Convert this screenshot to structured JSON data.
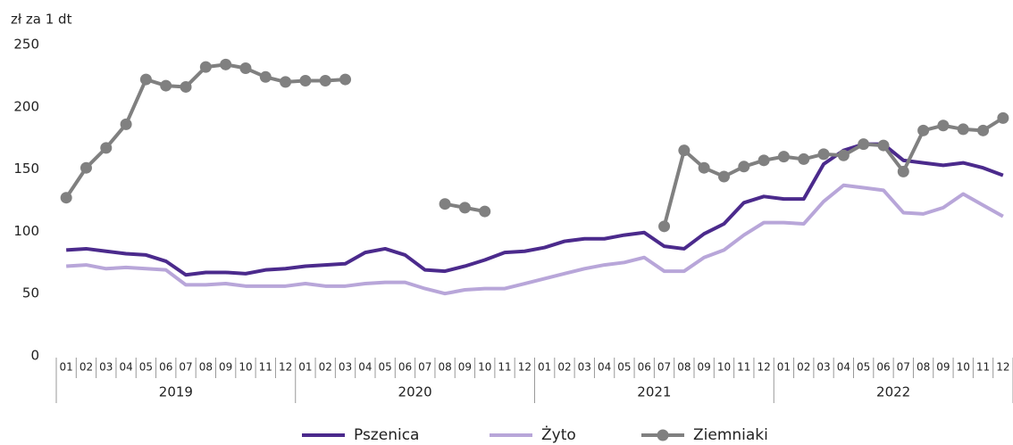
{
  "chart_data": {
    "type": "line",
    "y_label": "zł za 1 dt",
    "categories": [
      "01",
      "02",
      "03",
      "04",
      "05",
      "06",
      "07",
      "08",
      "09",
      "10",
      "11",
      "12",
      "01",
      "02",
      "03",
      "04",
      "05",
      "06",
      "07",
      "08",
      "09",
      "10",
      "11",
      "12",
      "01",
      "02",
      "03",
      "04",
      "05",
      "06",
      "07",
      "08",
      "09",
      "10",
      "11",
      "12",
      "01",
      "02",
      "03",
      "04",
      "05",
      "06",
      "07",
      "08",
      "09",
      "10",
      "11",
      "12"
    ],
    "years": [
      "2019",
      "2020",
      "2021",
      "2022"
    ],
    "ylim": [
      0,
      250
    ],
    "yticks": [
      0,
      50,
      100,
      150,
      200,
      250
    ],
    "legend": "bottom",
    "series": [
      {
        "name": "Pszenica",
        "color": "#4b2a8c",
        "marker": false,
        "values": [
          85,
          86,
          84,
          82,
          81,
          76,
          65,
          67,
          67,
          66,
          69,
          70,
          72,
          73,
          74,
          83,
          86,
          81,
          69,
          68,
          72,
          77,
          83,
          84,
          87,
          92,
          94,
          94,
          97,
          99,
          88,
          86,
          98,
          106,
          123,
          128,
          126,
          126,
          154,
          165,
          170,
          170,
          157,
          155,
          153,
          155,
          151,
          145
        ]
      },
      {
        "name": "Żyto",
        "color": "#b8a6d9",
        "marker": false,
        "values": [
          72,
          73,
          70,
          71,
          70,
          69,
          57,
          57,
          58,
          56,
          56,
          56,
          58,
          56,
          56,
          58,
          59,
          59,
          54,
          50,
          53,
          54,
          54,
          58,
          62,
          66,
          70,
          73,
          75,
          79,
          68,
          68,
          79,
          85,
          97,
          107,
          107,
          106,
          124,
          137,
          135,
          133,
          115,
          114,
          119,
          130,
          121,
          112
        ]
      },
      {
        "name": "Ziemniaki",
        "color": "#808080",
        "marker": true,
        "values": [
          127,
          151,
          167,
          186,
          222,
          217,
          216,
          232,
          234,
          231,
          224,
          220,
          221,
          221,
          222,
          null,
          null,
          null,
          null,
          122,
          119,
          116,
          null,
          null,
          null,
          null,
          null,
          null,
          null,
          null,
          104,
          165,
          151,
          144,
          152,
          157,
          160,
          158,
          162,
          161,
          170,
          169,
          148,
          181,
          185,
          182,
          181,
          191
        ]
      }
    ]
  }
}
